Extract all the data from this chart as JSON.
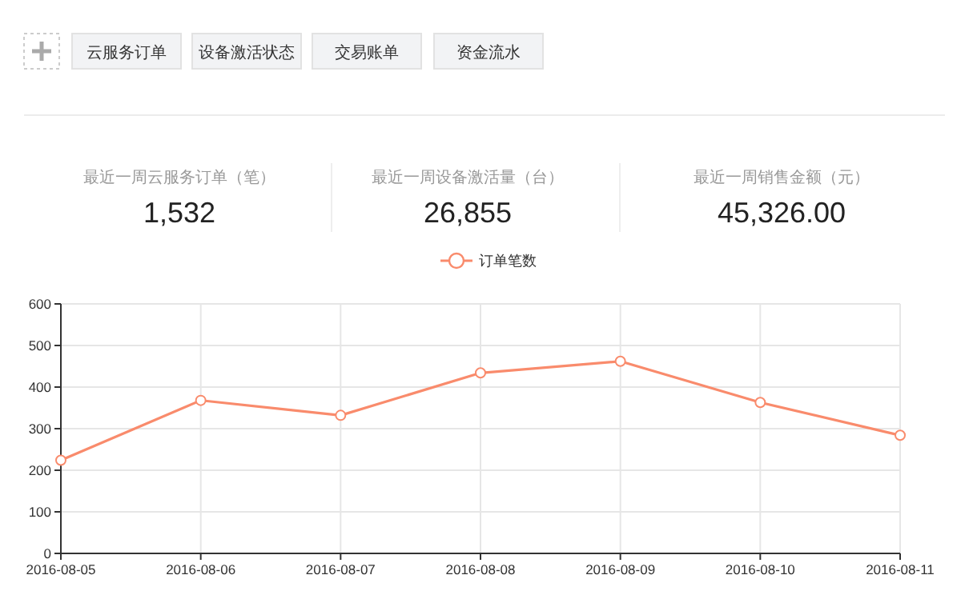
{
  "chart_data": [
    {
      "type": "other",
      "annotations": [
        "云服务订单",
        "设备激活状态",
        "交易账单",
        "资金流水"
      ]
    },
    {
      "type": "other",
      "title": "最近一周云服务订单（笔）",
      "annotations": [
        "1,532"
      ]
    },
    {
      "type": "other",
      "title": "最近一周设备激活量（台）",
      "annotations": [
        "26,855"
      ]
    },
    {
      "type": "other",
      "title": "最近一周销售金额（元）",
      "annotations": [
        "45,326.00"
      ]
    },
    {
      "type": "line",
      "categories": [
        "2016-08-05",
        "2016-08-06",
        "2016-08-07",
        "2016-08-08",
        "2016-08-09",
        "2016-08-10",
        "2016-08-11"
      ],
      "series": [
        {
          "name": "订单笔数",
          "color": "#f98b6c",
          "values": [
            224,
            368,
            332,
            434,
            462,
            363,
            284
          ]
        }
      ],
      "ylim": [
        0,
        600
      ],
      "yticks": [
        0,
        100,
        200,
        300,
        400,
        500,
        600
      ],
      "grid": true,
      "legend": "top",
      "marker": "circle"
    }
  ]
}
